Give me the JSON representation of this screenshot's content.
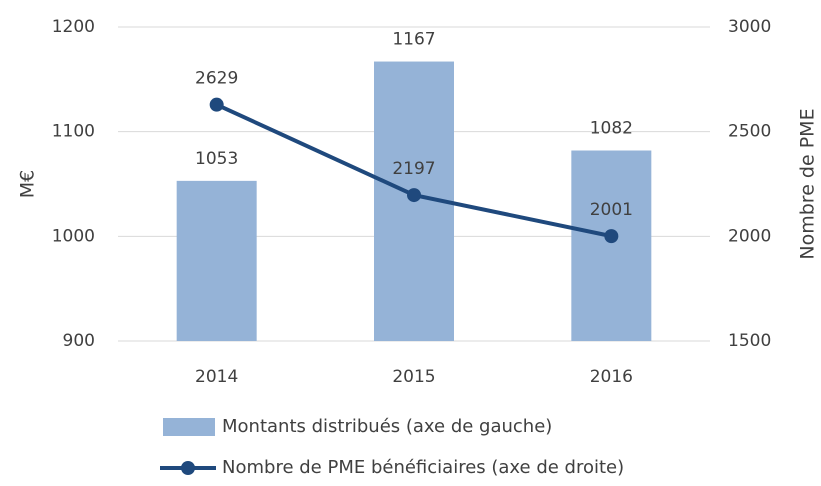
{
  "chart_data": {
    "type": "bar",
    "categories": [
      "2014",
      "2015",
      "2016"
    ],
    "series": [
      {
        "name": "Montants distribués (axe de gauche)",
        "color": "#95b3d7",
        "values": [
          1053,
          1167,
          1082
        ]
      },
      {
        "name": "Nombre de PME bénéficiaires (axe de droite)",
        "color": "#1f497d",
        "values": [
          2629,
          2197,
          2001
        ],
        "axis": "y2",
        "type": "line"
      }
    ],
    "ylabel": "M€",
    "y2label": "Nombre de PME",
    "ylim": [
      900,
      1200
    ],
    "yticks": [
      900,
      1000,
      1100,
      1200
    ],
    "y2lim": [
      1500,
      3000
    ],
    "y2ticks": [
      1500,
      2000,
      2500,
      3000
    ],
    "grid": true,
    "legend": "bottom"
  }
}
